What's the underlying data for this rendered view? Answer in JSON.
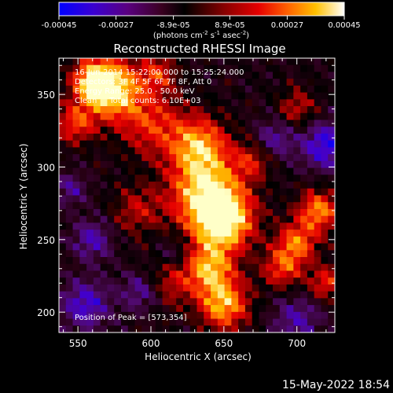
{
  "chart_data": {
    "type": "heatmap",
    "title": "Reconstructed RHESSI Image",
    "xlabel": "Heliocentric X (arcsec)",
    "ylabel": "Heliocentric Y (arcsec)",
    "xlim": [
      537,
      726
    ],
    "ylim": [
      186,
      375
    ],
    "x_ticks": [
      550,
      600,
      650,
      700
    ],
    "y_ticks": [
      200,
      250,
      300,
      350
    ],
    "colorbar": {
      "label_main": "(photons cm",
      "label_exp1": "-2",
      "label_mid": " s",
      "label_exp2": "-1",
      "label_end": " asec",
      "label_exp3": "-2",
      "label_close": ")",
      "range": [
        -0.00045,
        0.00045
      ],
      "tick_values": [
        -0.00045,
        -0.00027,
        -8.9e-05,
        8.9e-05,
        0.00027,
        0.00045
      ],
      "tick_labels": [
        "-0.00045",
        "-0.00027",
        "-8.9e-05",
        "8.9e-05",
        "0.00027",
        "0.00045"
      ],
      "colors": [
        "#0000ff",
        "#4b00c8",
        "#5a0b2d",
        "#000000",
        "#880000",
        "#e60000",
        "#ff5a00",
        "#ffb400",
        "#ffff78",
        "#ffffff"
      ]
    },
    "annotations": {
      "time_range": "16-Jun-2014 15:22:00.000 to 15:25:24.000",
      "detectors": "Detectors: 3F 4F 5F 6F 7F 8F, Att 0",
      "energy": "Energy Range: 25.0 - 50.0 keV",
      "clean": "Clean     Total counts: 6.10E+03",
      "peak": "Position of Peak = [573,354]"
    },
    "peak_position": [
      573,
      354
    ],
    "image_grid_note": "approximate intensity map, 40x40 pixels",
    "footer_date": "15-May-2022 18:54"
  }
}
